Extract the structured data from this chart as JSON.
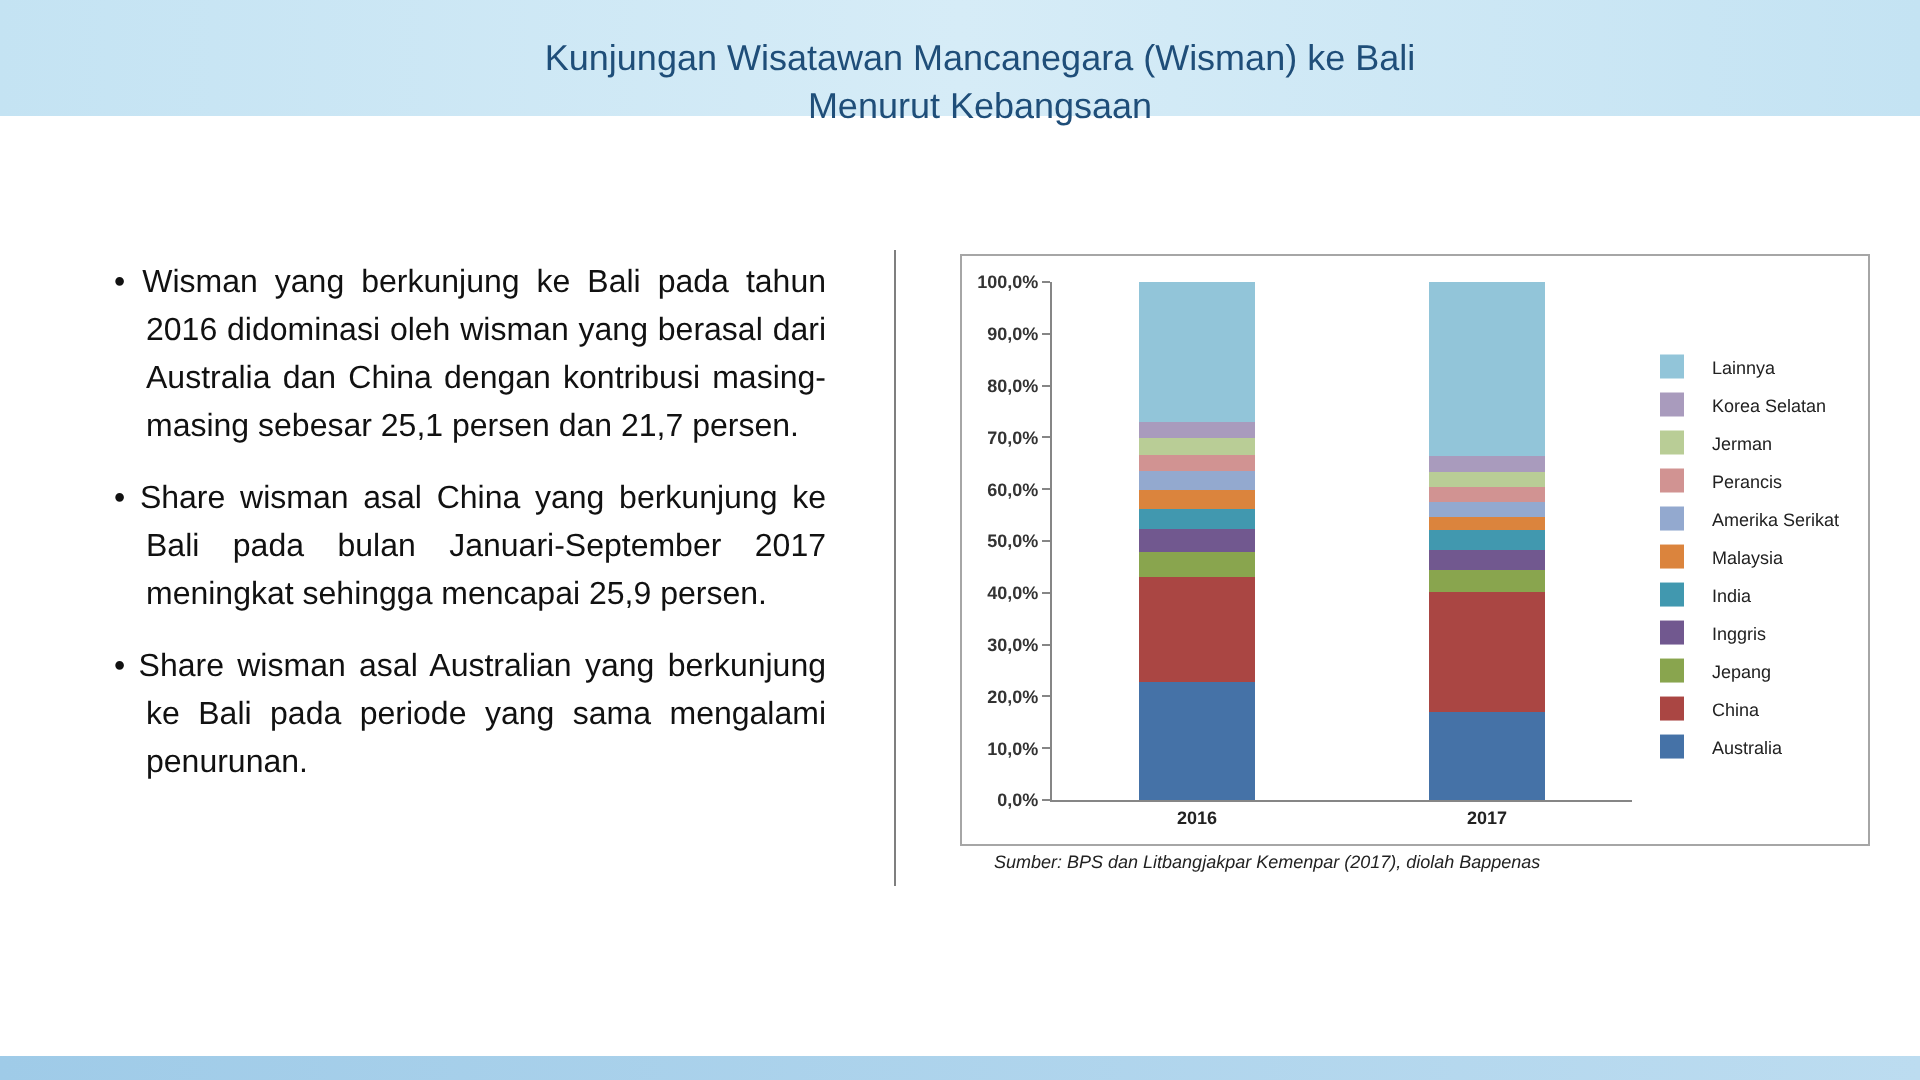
{
  "chart_data": {
    "type": "bar",
    "title": "Kunjungan Wisatawan Mancanegara (Wisman) ke Bali Menurut Kebangsaan",
    "categories": [
      "2016",
      "2017"
    ],
    "stacked": true,
    "series": [
      {
        "name": "Australia",
        "color": "#4572a7",
        "values": [
          22.8,
          16.9
        ]
      },
      {
        "name": "China",
        "color": "#aa4643",
        "values": [
          20.3,
          23.3
        ]
      },
      {
        "name": "Jepang",
        "color": "#89a54e",
        "values": [
          4.7,
          4.2
        ]
      },
      {
        "name": "Inggris",
        "color": "#71588f",
        "values": [
          4.5,
          3.8
        ]
      },
      {
        "name": "India",
        "color": "#4198af",
        "values": [
          3.8,
          3.9
        ]
      },
      {
        "name": "Malaysia",
        "color": "#db843d",
        "values": [
          3.8,
          2.5
        ]
      },
      {
        "name": "Amerika Serikat",
        "color": "#93a9cf",
        "values": [
          3.7,
          2.9
        ]
      },
      {
        "name": "Perancis",
        "color": "#d19392",
        "values": [
          3.1,
          2.9
        ]
      },
      {
        "name": "Jerman",
        "color": "#b9cd96",
        "values": [
          3.2,
          3.0
        ]
      },
      {
        "name": "Korea Selatan",
        "color": "#a99bbd",
        "values": [
          3.0,
          3.1
        ]
      },
      {
        "name": "Lainnya",
        "color": "#92c5d9",
        "values": [
          27.1,
          33.5
        ]
      }
    ],
    "ylim": [
      0,
      100
    ],
    "yticks": [
      {
        "value": 0,
        "label": "0,0%"
      },
      {
        "value": 10,
        "label": "10,0%"
      },
      {
        "value": 20,
        "label": "20,0%"
      },
      {
        "value": 30,
        "label": "30,0%"
      },
      {
        "value": 40,
        "label": "40,0%"
      },
      {
        "value": 50,
        "label": "50,0%"
      },
      {
        "value": 60,
        "label": "60,0%"
      },
      {
        "value": 70,
        "label": "70,0%"
      },
      {
        "value": 80,
        "label": "80,0%"
      },
      {
        "value": 90,
        "label": "90,0%"
      },
      {
        "value": 100,
        "label": "100,0%"
      }
    ],
    "legend": "right",
    "annotations": [
      "• Wisman yang berkunjung ke Bali pada tahun 2016 didominasi oleh wisman yang berasal dari Australia dan China dengan kontribusi masing-masing sebesar 25,1 persen dan 21,7 persen.",
      "• Share wisman asal China yang berkunjung ke Bali pada bulan Januari-September 2017 meningkat sehingga mencapai 25,9 persen.",
      "• Share wisman asal Australian yang berkunjung ke Bali pada periode yang sama mengalami penurunan.",
      "Sumber: BPS dan Litbangjakpar Kemenpar (2017), diolah Bappenas"
    ]
  }
}
